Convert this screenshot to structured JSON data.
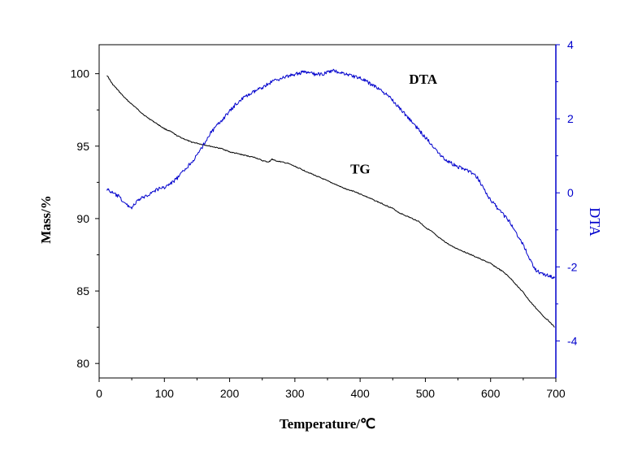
{
  "chart_data": {
    "type": "line",
    "title": "",
    "xlabel": "Temperature/℃",
    "ylabel": "Mass/%",
    "y2label": "DTA",
    "xlim": [
      0,
      700
    ],
    "ylim": [
      79,
      102
    ],
    "y2lim": [
      -5,
      4
    ],
    "x_ticks": [
      0,
      100,
      200,
      300,
      400,
      500,
      600,
      700
    ],
    "y_ticks": [
      80,
      85,
      90,
      95,
      100
    ],
    "y2_ticks": [
      -4,
      -2,
      0,
      2,
      4
    ],
    "grid": false,
    "legend": "none",
    "series": [
      {
        "name": "TG",
        "axis": "left",
        "color": "#000000",
        "x": [
          12,
          20,
          30,
          40,
          50,
          60,
          70,
          80,
          90,
          100,
          110,
          120,
          130,
          140,
          150,
          160,
          170,
          180,
          190,
          200,
          210,
          220,
          230,
          240,
          250,
          260,
          265,
          270,
          280,
          290,
          300,
          310,
          320,
          330,
          340,
          350,
          360,
          370,
          380,
          390,
          400,
          410,
          420,
          430,
          440,
          450,
          460,
          470,
          480,
          490,
          500,
          510,
          520,
          530,
          540,
          550,
          560,
          570,
          580,
          590,
          600,
          610,
          620,
          630,
          640,
          650,
          660,
          670,
          680,
          690,
          698
        ],
        "values": [
          99.9,
          99.3,
          98.8,
          98.3,
          97.9,
          97.5,
          97.1,
          96.8,
          96.5,
          96.2,
          96.0,
          95.7,
          95.5,
          95.3,
          95.2,
          95.1,
          95.0,
          94.9,
          94.8,
          94.6,
          94.5,
          94.4,
          94.3,
          94.2,
          94.0,
          93.9,
          94.1,
          94.0,
          93.9,
          93.8,
          93.6,
          93.4,
          93.2,
          93.0,
          92.8,
          92.6,
          92.4,
          92.2,
          92.0,
          91.9,
          91.7,
          91.5,
          91.3,
          91.1,
          90.9,
          90.7,
          90.4,
          90.2,
          90.0,
          89.8,
          89.4,
          89.1,
          88.7,
          88.4,
          88.1,
          87.9,
          87.7,
          87.5,
          87.3,
          87.1,
          86.9,
          86.6,
          86.3,
          85.9,
          85.4,
          84.9,
          84.3,
          83.8,
          83.3,
          82.9,
          82.5
        ]
      },
      {
        "name": "DTA",
        "axis": "right",
        "color": "#0000cc",
        "x": [
          12,
          20,
          30,
          40,
          50,
          60,
          70,
          80,
          90,
          100,
          110,
          120,
          130,
          140,
          150,
          160,
          170,
          180,
          190,
          200,
          210,
          220,
          230,
          240,
          250,
          260,
          270,
          280,
          290,
          300,
          310,
          320,
          330,
          340,
          350,
          360,
          370,
          380,
          390,
          400,
          410,
          420,
          430,
          440,
          450,
          460,
          470,
          480,
          490,
          500,
          510,
          520,
          530,
          540,
          550,
          560,
          570,
          580,
          590,
          600,
          610,
          620,
          630,
          640,
          650,
          660,
          670,
          680,
          690,
          698
        ],
        "values": [
          0.1,
          0.0,
          -0.1,
          -0.3,
          -0.4,
          -0.2,
          -0.1,
          0.0,
          0.1,
          0.15,
          0.25,
          0.4,
          0.6,
          0.8,
          1.0,
          1.3,
          1.6,
          1.8,
          2.0,
          2.2,
          2.4,
          2.55,
          2.65,
          2.75,
          2.85,
          2.95,
          3.05,
          3.1,
          3.15,
          3.2,
          3.25,
          3.25,
          3.2,
          3.2,
          3.25,
          3.3,
          3.25,
          3.2,
          3.15,
          3.1,
          3.0,
          2.9,
          2.8,
          2.65,
          2.5,
          2.3,
          2.1,
          1.9,
          1.7,
          1.5,
          1.3,
          1.1,
          0.9,
          0.8,
          0.7,
          0.65,
          0.55,
          0.4,
          0.1,
          -0.2,
          -0.4,
          -0.6,
          -0.8,
          -1.1,
          -1.4,
          -1.8,
          -2.1,
          -2.2,
          -2.25,
          -2.3
        ]
      }
    ],
    "annotations": [
      {
        "text": "DTA",
        "x": 475,
        "y2": 2.95
      },
      {
        "text": "TG",
        "x": 385,
        "y": 93.1
      }
    ]
  }
}
